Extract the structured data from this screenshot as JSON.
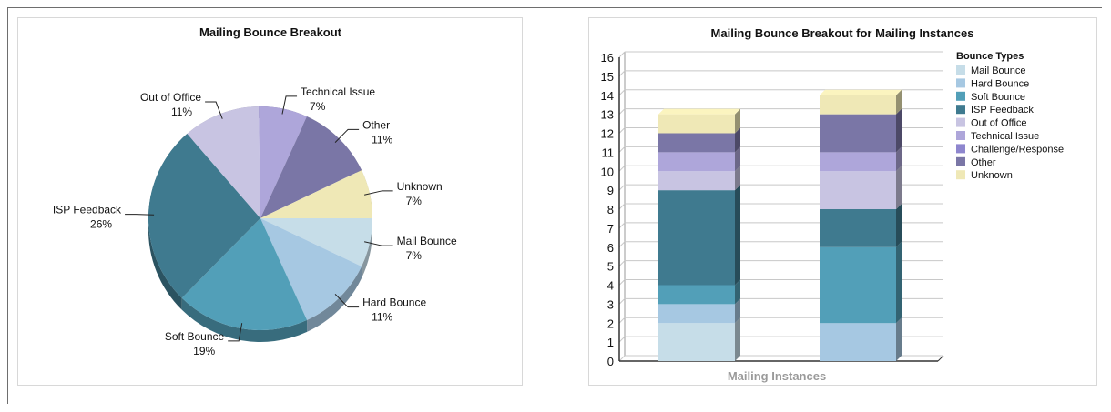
{
  "chart_data": [
    {
      "type": "pie",
      "title": "Mailing Bounce Breakout",
      "slices": [
        {
          "label": "Mail Bounce",
          "pct_text": "7%",
          "value": 7,
          "color": "#c6dde8"
        },
        {
          "label": "Hard Bounce",
          "pct_text": "11%",
          "value": 11,
          "color": "#a6c8e2"
        },
        {
          "label": "Soft Bounce",
          "pct_text": "19%",
          "value": 19,
          "color": "#529fb8"
        },
        {
          "label": "ISP Feedback",
          "pct_text": "26%",
          "value": 26,
          "color": "#3f7a8f"
        },
        {
          "label": "Out of Office",
          "pct_text": "11%",
          "value": 11,
          "color": "#c8c4e2"
        },
        {
          "label": "Technical Issue",
          "pct_text": "7%",
          "value": 7,
          "color": "#aea6da"
        },
        {
          "label": "Other",
          "pct_text": "11%",
          "value": 11,
          "color": "#7a76a6"
        },
        {
          "label": "Unknown",
          "pct_text": "7%",
          "value": 7,
          "color": "#efe8b6"
        }
      ]
    },
    {
      "type": "bar",
      "stacked": true,
      "title": "Mailing Bounce Breakout for Mailing Instances",
      "xlabel": "Mailing Instances",
      "ylim": [
        0,
        16
      ],
      "yticks": [
        "0",
        "1",
        "2",
        "3",
        "4",
        "5",
        "6",
        "7",
        "8",
        "9",
        "10",
        "11",
        "12",
        "13",
        "14",
        "15",
        "16"
      ],
      "categories": [
        "",
        ""
      ],
      "legend_title": "Bounce Types",
      "series": [
        {
          "name": "Mail Bounce",
          "color": "#c6dde8",
          "values": [
            2,
            0
          ]
        },
        {
          "name": "Hard Bounce",
          "color": "#a6c8e2",
          "values": [
            1,
            2
          ]
        },
        {
          "name": "Soft Bounce",
          "color": "#529fb8",
          "values": [
            1,
            4
          ]
        },
        {
          "name": "ISP Feedback",
          "color": "#3f7a8f",
          "values": [
            5,
            2
          ]
        },
        {
          "name": "Out of Office",
          "color": "#c8c4e2",
          "values": [
            1,
            2
          ]
        },
        {
          "name": "Technical Issue",
          "color": "#aea6da",
          "values": [
            1,
            1
          ]
        },
        {
          "name": "Challenge/Response",
          "color": "#8e86ce",
          "values": [
            0,
            0
          ]
        },
        {
          "name": "Other",
          "color": "#7a76a6",
          "values": [
            1,
            2
          ]
        },
        {
          "name": "Unknown",
          "color": "#efe8b6",
          "values": [
            1,
            1
          ]
        }
      ]
    }
  ]
}
